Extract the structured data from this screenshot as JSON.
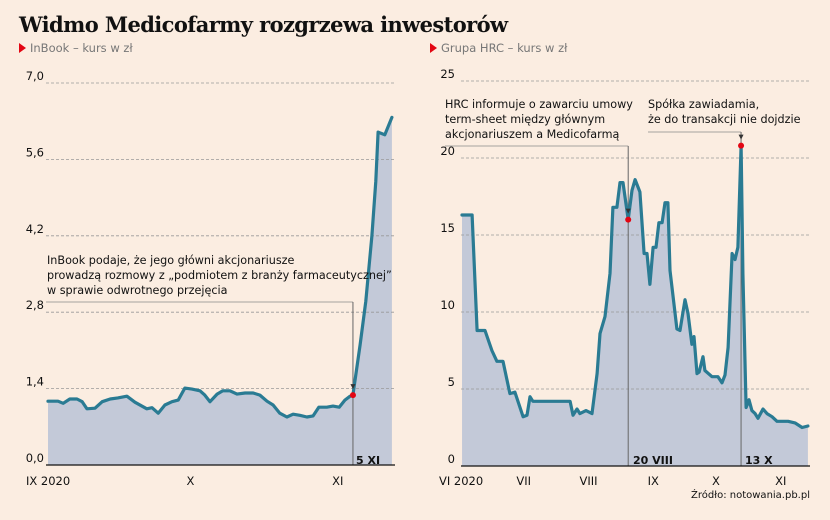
{
  "title": "Widmo Medicofarmy rozgrzewa inwestorów",
  "source": "Źródło: notowania.pb.pl",
  "colors": {
    "background": "#fbede1",
    "area": "#c3c9d8",
    "line": "#2a7b93",
    "marker": "#e30613",
    "grid": "#999999"
  },
  "chart_data": [
    {
      "type": "area",
      "subtitle": "InBook – kurs w zł",
      "xunit": "days since 1 IX 2020",
      "ylim": [
        0,
        7.0
      ],
      "yticks": [
        0.0,
        1.4,
        2.8,
        4.2,
        5.6,
        7.0
      ],
      "ytick_labels": [
        "0,0",
        "1,4",
        "2,8",
        "4,2",
        "5,6",
        "7,0"
      ],
      "xticks": [
        0,
        30,
        61
      ],
      "xtick_labels": [
        "IX 2020",
        "X",
        "XI"
      ],
      "grid": true,
      "points": [
        [
          0,
          1.17
        ],
        [
          2.1,
          1.17
        ],
        [
          3.2,
          1.13
        ],
        [
          4.6,
          1.21
        ],
        [
          6.1,
          1.21
        ],
        [
          7.2,
          1.16
        ],
        [
          8.2,
          1.03
        ],
        [
          9.9,
          1.04
        ],
        [
          11.4,
          1.16
        ],
        [
          13.1,
          1.21
        ],
        [
          14.7,
          1.23
        ],
        [
          16.6,
          1.26
        ],
        [
          18.3,
          1.15
        ],
        [
          20.8,
          1.03
        ],
        [
          21.9,
          1.05
        ],
        [
          23.2,
          0.95
        ],
        [
          24.6,
          1.1
        ],
        [
          26.1,
          1.16
        ],
        [
          27.4,
          1.19
        ],
        [
          28.8,
          1.41
        ],
        [
          30.3,
          1.39
        ],
        [
          32,
          1.36
        ],
        [
          33,
          1.28
        ],
        [
          34.1,
          1.16
        ],
        [
          35.6,
          1.3
        ],
        [
          36.8,
          1.36
        ],
        [
          38.3,
          1.36
        ],
        [
          39.8,
          1.3
        ],
        [
          41.5,
          1.32
        ],
        [
          43.2,
          1.32
        ],
        [
          44.6,
          1.28
        ],
        [
          46.1,
          1.17
        ],
        [
          47.4,
          1.1
        ],
        [
          48.8,
          0.95
        ],
        [
          50.3,
          0.88
        ],
        [
          51.6,
          0.93
        ],
        [
          53,
          0.91
        ],
        [
          54.5,
          0.88
        ],
        [
          55.8,
          0.9
        ],
        [
          57,
          1.06
        ],
        [
          58.7,
          1.06
        ],
        [
          60,
          1.08
        ],
        [
          61.3,
          1.06
        ],
        [
          62.5,
          1.19
        ],
        [
          63.6,
          1.26
        ],
        [
          64.2,
          1.28
        ],
        [
          65.7,
          2.2
        ],
        [
          66.9,
          3.0
        ],
        [
          68.2,
          4.2
        ],
        [
          69,
          5.2
        ],
        [
          69.5,
          6.1
        ],
        [
          70.9,
          6.05
        ],
        [
          71.6,
          6.2
        ],
        [
          72.4,
          6.37
        ]
      ],
      "annotations": [
        {
          "x": 64.2,
          "y": 1.28,
          "label": "5 XI",
          "text": "InBook podaje, że jego główni akcjonariusze\nprowadzą rozmowy z „podmiotem z branży farmaceutycznej”\nw sprawie odwrotnego przejęcia"
        }
      ]
    },
    {
      "type": "area",
      "subtitle": "Grupa HRC – kurs w zł",
      "xunit": "days since 1 VI 2020",
      "ylim": [
        0,
        25
      ],
      "yticks": [
        0,
        5,
        10,
        15,
        20,
        25
      ],
      "ytick_labels": [
        "0",
        "5",
        "10",
        "15",
        "20",
        "25"
      ],
      "xticks": [
        0,
        30,
        61,
        92,
        122,
        153
      ],
      "xtick_labels": [
        "VI 2020",
        "VII",
        "VIII",
        "IX",
        "X",
        "XI"
      ],
      "grid": true,
      "points": [
        [
          0.5,
          16.3
        ],
        [
          5.3,
          16.3
        ],
        [
          7.7,
          8.8
        ],
        [
          11.5,
          8.8
        ],
        [
          14.8,
          7.5
        ],
        [
          17.2,
          6.8
        ],
        [
          20.1,
          6.8
        ],
        [
          23.4,
          4.7
        ],
        [
          25.8,
          4.8
        ],
        [
          29.7,
          3.2
        ],
        [
          31.6,
          3.3
        ],
        [
          33,
          4.5
        ],
        [
          34.4,
          4.2
        ],
        [
          52.2,
          4.2
        ],
        [
          53.6,
          3.3
        ],
        [
          55.5,
          3.7
        ],
        [
          56.9,
          3.4
        ],
        [
          59.8,
          3.6
        ],
        [
          62.7,
          3.4
        ],
        [
          65.1,
          6.0
        ],
        [
          66.5,
          8.6
        ],
        [
          68.9,
          9.7
        ],
        [
          71.3,
          12.5
        ],
        [
          72.7,
          16.8
        ],
        [
          74.6,
          16.8
        ],
        [
          76.1,
          18.4
        ],
        [
          77.5,
          18.4
        ],
        [
          80,
          16.0
        ],
        [
          81.8,
          17.9
        ],
        [
          83.3,
          18.6
        ],
        [
          85.6,
          17.8
        ],
        [
          87.6,
          13.8
        ],
        [
          89,
          13.8
        ],
        [
          90.4,
          11.8
        ],
        [
          91.9,
          14.2
        ],
        [
          93.3,
          14.2
        ],
        [
          94.7,
          15.8
        ],
        [
          96.2,
          15.8
        ],
        [
          97.6,
          17.1
        ],
        [
          99,
          17.1
        ],
        [
          100,
          12.7
        ],
        [
          103.3,
          8.9
        ],
        [
          104.8,
          8.8
        ],
        [
          107.2,
          10.8
        ],
        [
          108.6,
          9.9
        ],
        [
          110.5,
          7.9
        ],
        [
          111.5,
          8.4
        ],
        [
          112.9,
          6.0
        ],
        [
          113.9,
          6.1
        ],
        [
          115.8,
          7.1
        ],
        [
          116.7,
          6.2
        ],
        [
          120.1,
          5.8
        ],
        [
          122.9,
          5.8
        ],
        [
          124.9,
          5.4
        ],
        [
          126.3,
          5.9
        ],
        [
          127.8,
          7.7
        ],
        [
          129.7,
          13.8
        ],
        [
          131.1,
          13.4
        ],
        [
          132.5,
          14.2
        ],
        [
          134,
          20.8
        ],
        [
          134.9,
          12.5
        ],
        [
          136.4,
          3.8
        ],
        [
          137.8,
          4.3
        ],
        [
          139.2,
          3.6
        ],
        [
          140.7,
          3.4
        ],
        [
          142.1,
          3.1
        ],
        [
          144.5,
          3.7
        ],
        [
          146.4,
          3.4
        ],
        [
          148.8,
          3.2
        ],
        [
          151.2,
          2.9
        ],
        [
          154.1,
          2.9
        ],
        [
          156.5,
          2.9
        ],
        [
          159.8,
          2.8
        ],
        [
          163.2,
          2.5
        ],
        [
          166,
          2.6
        ]
      ],
      "annotations": [
        {
          "x": 80,
          "y": 16.0,
          "label": "20 VIII",
          "text": "HRC informuje o zawarciu umowy\nterm-sheet między głównym\nakcjonariuszem a Medicofarmą"
        },
        {
          "x": 134,
          "y": 20.8,
          "label": "13 X",
          "text": "Spółka zawiadamia,\nże do transakcji nie dojdzie"
        }
      ]
    }
  ]
}
